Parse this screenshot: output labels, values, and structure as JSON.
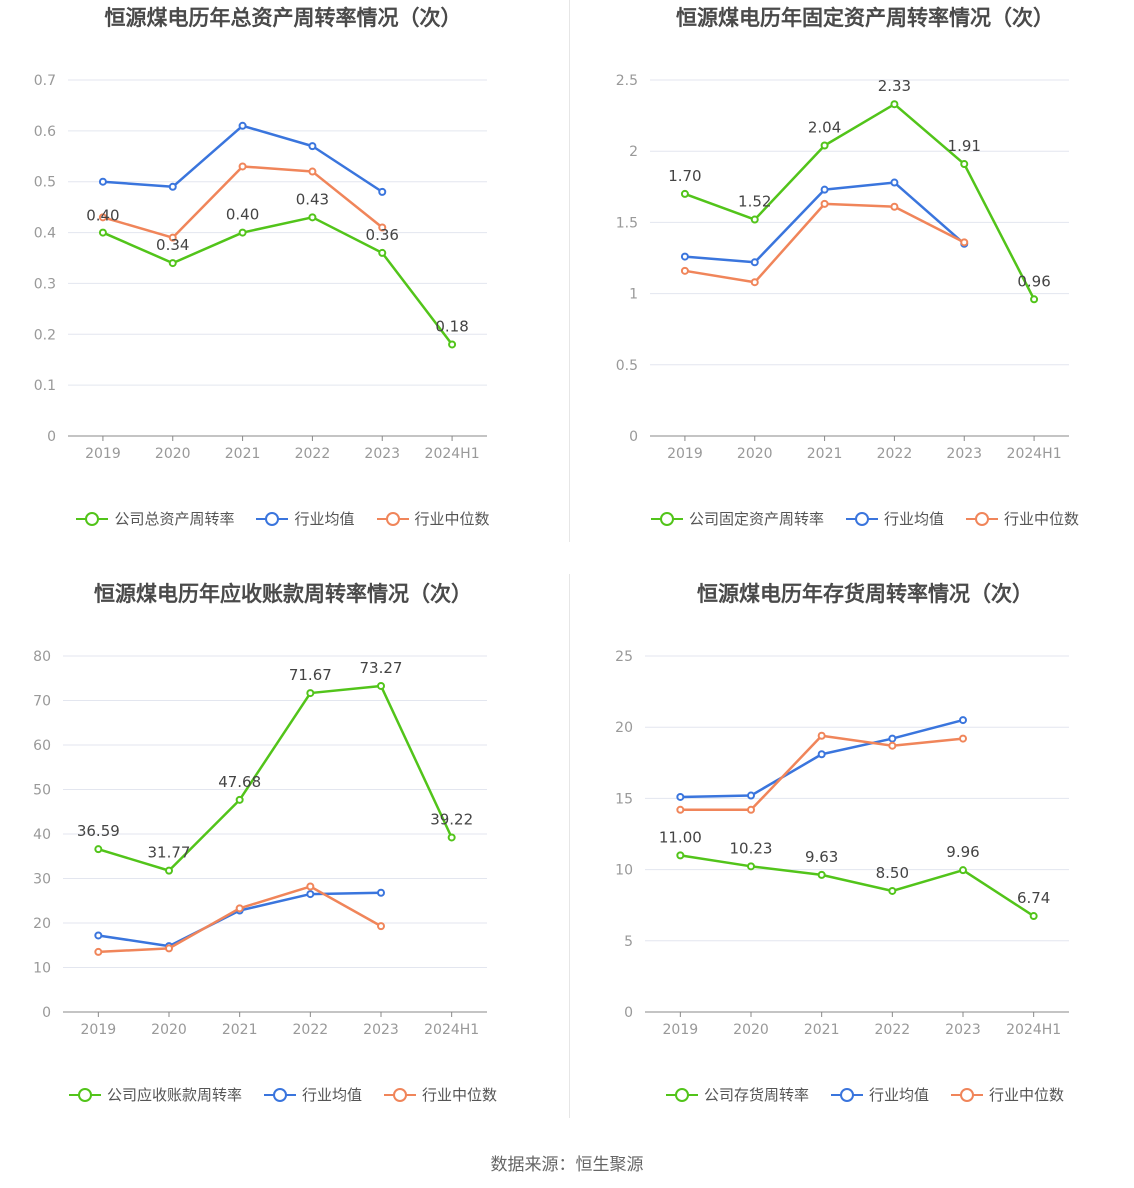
{
  "source": "数据来源：恒生聚源",
  "chart_data": [
    {
      "type": "line",
      "title": "恒源煤电历年总资产周转率情况（次）",
      "categories": [
        "2019",
        "2020",
        "2021",
        "2022",
        "2023",
        "2024H1"
      ],
      "ylim": [
        0,
        0.7
      ],
      "yticks": [
        "0",
        "0.1",
        "0.2",
        "0.3",
        "0.4",
        "0.5",
        "0.6",
        "0.7"
      ],
      "grid": true,
      "legend_position": "bottom",
      "series": [
        {
          "name": "公司总资产周转率",
          "color": "#52c41a",
          "values": [
            0.4,
            0.34,
            0.4,
            0.43,
            0.36,
            0.18
          ],
          "labels": [
            "0.40",
            "0.34",
            "0.40",
            "0.43",
            "0.36",
            "0.18"
          ]
        },
        {
          "name": "行业均值",
          "color": "#3a75dd",
          "values": [
            0.5,
            0.49,
            0.61,
            0.57,
            0.48,
            null
          ]
        },
        {
          "name": "行业中位数",
          "color": "#f0855a",
          "values": [
            0.43,
            0.39,
            0.53,
            0.52,
            0.41,
            null
          ]
        }
      ]
    },
    {
      "type": "line",
      "title": "恒源煤电历年固定资产周转率情况（次）",
      "categories": [
        "2019",
        "2020",
        "2021",
        "2022",
        "2023",
        "2024H1"
      ],
      "ylim": [
        0,
        2.5
      ],
      "yticks": [
        "0",
        "0.5",
        "1",
        "1.5",
        "2",
        "2.5"
      ],
      "grid": true,
      "legend_position": "bottom",
      "series": [
        {
          "name": "公司固定资产周转率",
          "color": "#52c41a",
          "values": [
            1.7,
            1.52,
            2.04,
            2.33,
            1.91,
            0.96
          ],
          "labels": [
            "1.70",
            "1.52",
            "2.04",
            "2.33",
            "1.91",
            "0.96"
          ]
        },
        {
          "name": "行业均值",
          "color": "#3a75dd",
          "values": [
            1.26,
            1.22,
            1.73,
            1.78,
            1.35,
            null
          ]
        },
        {
          "name": "行业中位数",
          "color": "#f0855a",
          "values": [
            1.16,
            1.08,
            1.63,
            1.61,
            1.36,
            null
          ]
        }
      ]
    },
    {
      "type": "line",
      "title": "恒源煤电历年应收账款周转率情况（次）",
      "categories": [
        "2019",
        "2020",
        "2021",
        "2022",
        "2023",
        "2024H1"
      ],
      "ylim": [
        0,
        80
      ],
      "yticks": [
        "0",
        "10",
        "20",
        "30",
        "40",
        "50",
        "60",
        "70",
        "80"
      ],
      "grid": true,
      "legend_position": "bottom",
      "series": [
        {
          "name": "公司应收账款周转率",
          "color": "#52c41a",
          "values": [
            36.59,
            31.77,
            47.68,
            71.67,
            73.27,
            39.22
          ],
          "labels": [
            "36.59",
            "31.77",
            "47.68",
            "71.67",
            "73.27",
            "39.22"
          ]
        },
        {
          "name": "行业均值",
          "color": "#3a75dd",
          "values": [
            17.2,
            14.8,
            22.8,
            26.5,
            26.8,
            null
          ]
        },
        {
          "name": "行业中位数",
          "color": "#f0855a",
          "values": [
            13.5,
            14.3,
            23.3,
            28.2,
            19.3,
            null
          ]
        }
      ]
    },
    {
      "type": "line",
      "title": "恒源煤电历年存货周转率情况（次）",
      "categories": [
        "2019",
        "2020",
        "2021",
        "2022",
        "2023",
        "2024H1"
      ],
      "ylim": [
        0,
        25
      ],
      "yticks": [
        "0",
        "5",
        "10",
        "15",
        "20",
        "25"
      ],
      "grid": true,
      "legend_position": "bottom",
      "series": [
        {
          "name": "公司存货周转率",
          "color": "#52c41a",
          "values": [
            11.0,
            10.23,
            9.63,
            8.5,
            9.96,
            6.74
          ],
          "labels": [
            "11.00",
            "10.23",
            "9.63",
            "8.50",
            "9.96",
            "6.74"
          ]
        },
        {
          "name": "行业均值",
          "color": "#3a75dd",
          "values": [
            15.1,
            15.2,
            18.1,
            19.2,
            20.5,
            null
          ]
        },
        {
          "name": "行业中位数",
          "color": "#f0855a",
          "values": [
            14.2,
            14.2,
            19.4,
            18.7,
            19.2,
            null
          ]
        }
      ]
    }
  ]
}
